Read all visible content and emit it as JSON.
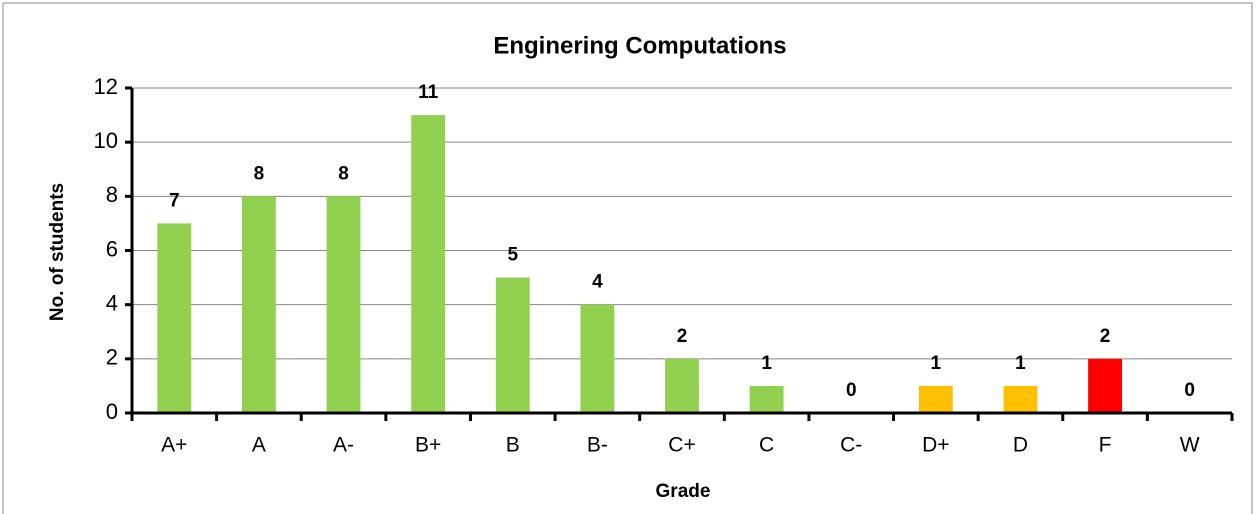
{
  "chart_data": {
    "type": "bar",
    "title": "Enginering Computations",
    "x_label": "Grade",
    "y_label": "No. of students",
    "categories": [
      "A+",
      "A",
      "A-",
      "B+",
      "B",
      "B-",
      "C+",
      "C",
      "C-",
      "D+",
      "D",
      "F",
      "W"
    ],
    "values": [
      7,
      8,
      8,
      11,
      5,
      4,
      2,
      1,
      0,
      1,
      1,
      2,
      0
    ],
    "colors": [
      "#92d050",
      "#92d050",
      "#92d050",
      "#92d050",
      "#92d050",
      "#92d050",
      "#92d050",
      "#92d050",
      "#92d050",
      "#ffc000",
      "#ffc000",
      "#ff0000",
      "#92d050"
    ],
    "ylim": [
      0,
      12
    ],
    "yticks": [
      0,
      2,
      4,
      6,
      8,
      10,
      12
    ],
    "grid": true
  }
}
